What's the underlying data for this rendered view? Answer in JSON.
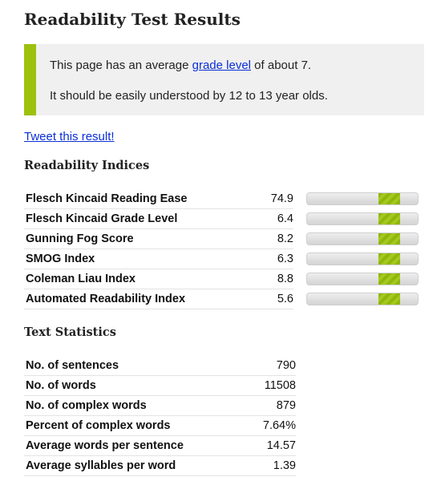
{
  "title": "Readability Test Results",
  "summary": {
    "line1_pre": "This page has an average ",
    "line1_link": "grade level",
    "line1_post": " of about 7.",
    "line2": "It should be easily understood by 12 to 13 year olds."
  },
  "tweet_link": "Tweet this result!",
  "indices": {
    "heading": "Readability Indices",
    "rows": [
      {
        "name": "Flesch Kincaid Reading Ease",
        "value": "74.9",
        "level": 0.73
      },
      {
        "name": "Flesch Kincaid Grade Level",
        "value": "6.4",
        "level": 0.73
      },
      {
        "name": "Gunning Fog Score",
        "value": "8.2",
        "level": 0.73
      },
      {
        "name": "SMOG Index",
        "value": "6.3",
        "level": 0.73
      },
      {
        "name": "Coleman Liau Index",
        "value": "8.8",
        "level": 0.73
      },
      {
        "name": "Automated Readability Index",
        "value": "5.6",
        "level": 0.73
      }
    ]
  },
  "stats": {
    "heading": "Text Statistics",
    "rows": [
      {
        "name": "No. of sentences",
        "value": "790"
      },
      {
        "name": "No. of words",
        "value": "11508"
      },
      {
        "name": "No. of complex words",
        "value": "879"
      },
      {
        "name": "Percent of complex words",
        "value": "7.64%"
      },
      {
        "name": "Average words per sentence",
        "value": "14.57"
      },
      {
        "name": "Average syllables per word",
        "value": "1.39"
      }
    ]
  },
  "colors": {
    "accent": "#9ec10e",
    "link": "#0a2fd6",
    "summary_bg": "#f0f0f0"
  }
}
